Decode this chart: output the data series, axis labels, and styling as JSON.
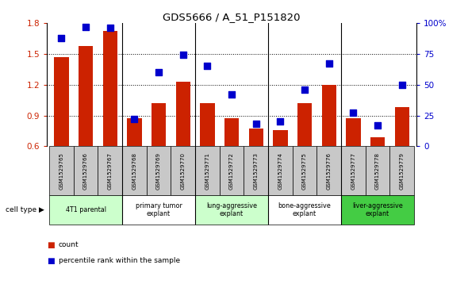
{
  "title": "GDS5666 / A_51_P151820",
  "samples": [
    "GSM1529765",
    "GSM1529766",
    "GSM1529767",
    "GSM1529768",
    "GSM1529769",
    "GSM1529770",
    "GSM1529771",
    "GSM1529772",
    "GSM1529773",
    "GSM1529774",
    "GSM1529775",
    "GSM1529776",
    "GSM1529777",
    "GSM1529778",
    "GSM1529779"
  ],
  "bar_values": [
    1.47,
    1.58,
    1.72,
    0.87,
    1.02,
    1.23,
    1.02,
    0.87,
    0.77,
    0.76,
    1.02,
    1.2,
    0.87,
    0.69,
    0.98
  ],
  "dot_values": [
    88,
    97,
    96,
    22,
    60,
    74,
    65,
    42,
    18,
    20,
    46,
    67,
    27,
    17,
    50
  ],
  "ylim_left": [
    0.6,
    1.8
  ],
  "ylim_right": [
    0,
    100
  ],
  "yticks_left": [
    0.6,
    0.9,
    1.2,
    1.5,
    1.8
  ],
  "yticks_right": [
    0,
    25,
    50,
    75,
    100
  ],
  "yticklabels_right": [
    "0",
    "25",
    "50",
    "75",
    "100%"
  ],
  "bar_color": "#cc2200",
  "dot_color": "#0000cc",
  "cell_groups": [
    {
      "label": "4T1 parental",
      "start": 0,
      "end": 3,
      "color": "#ccffcc"
    },
    {
      "label": "primary tumor\nexplant",
      "start": 3,
      "end": 6,
      "color": "#ffffff"
    },
    {
      "label": "lung-aggressive\nexplant",
      "start": 6,
      "end": 9,
      "color": "#ccffcc"
    },
    {
      "label": "bone-aggressive\nexplant",
      "start": 9,
      "end": 12,
      "color": "#ffffff"
    },
    {
      "label": "liver-aggressive\nexplant",
      "start": 12,
      "end": 15,
      "color": "#44cc44"
    }
  ],
  "group_dividers": [
    3,
    6,
    9,
    12
  ],
  "legend_items": [
    {
      "label": "count",
      "color": "#cc2200"
    },
    {
      "label": "percentile rank within the sample",
      "color": "#0000cc"
    }
  ],
  "cell_type_label": "cell type",
  "bg_color": "#ffffff",
  "tick_area_color": "#c8c8c8"
}
